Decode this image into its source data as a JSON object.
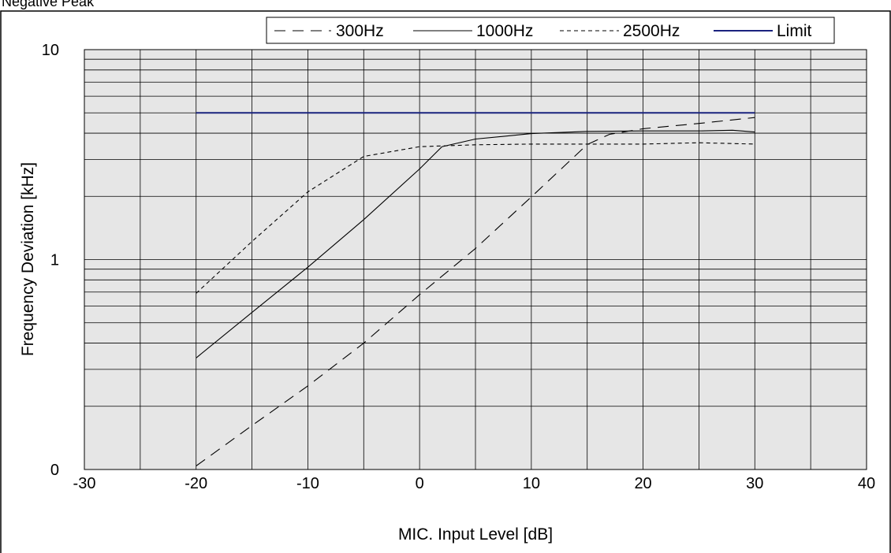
{
  "caption": "Negative Peak",
  "chart_data": {
    "type": "line",
    "xlabel": "MIC. Input Level [dB]",
    "ylabel": "Frequency Deviation [kHz]",
    "xlim": [
      -30,
      40
    ],
    "x_ticks": [
      -30,
      -20,
      -10,
      0,
      10,
      20,
      30,
      40
    ],
    "x_tick_labels": [
      "-30",
      "-20",
      "-10",
      "0",
      "10",
      "20",
      "30",
      "40"
    ],
    "y_scale": "log",
    "y_ticks": [
      0.1,
      1,
      10
    ],
    "y_tick_labels": [
      "0",
      "1",
      "10"
    ],
    "ylim": [
      0.1,
      10
    ],
    "grid": true,
    "legend_position": "top",
    "series": [
      {
        "name": "300Hz",
        "style": "long-dash",
        "color": "#000000",
        "points": [
          [
            -20,
            0.104
          ],
          [
            -15,
            0.162
          ],
          [
            -10,
            0.25
          ],
          [
            -5,
            0.4
          ],
          [
            0,
            0.68
          ],
          [
            5,
            1.13
          ],
          [
            10,
            1.99
          ],
          [
            15,
            3.53
          ],
          [
            17,
            3.95
          ],
          [
            20,
            4.2
          ],
          [
            25,
            4.45
          ],
          [
            30,
            4.75
          ]
        ]
      },
      {
        "name": "1000Hz",
        "style": "solid",
        "color": "#000000",
        "points": [
          [
            -20,
            0.34
          ],
          [
            -15,
            0.56
          ],
          [
            -10,
            0.92
          ],
          [
            -5,
            1.55
          ],
          [
            0,
            2.7
          ],
          [
            2,
            3.45
          ],
          [
            5,
            3.75
          ],
          [
            10,
            3.98
          ],
          [
            15,
            4.08
          ],
          [
            20,
            4.1
          ],
          [
            25,
            4.1
          ],
          [
            28,
            4.13
          ],
          [
            30,
            4.05
          ]
        ]
      },
      {
        "name": "2500Hz",
        "style": "short-dash",
        "color": "#000000",
        "points": [
          [
            -20,
            0.69
          ],
          [
            -15,
            1.22
          ],
          [
            -10,
            2.1
          ],
          [
            -5,
            3.1
          ],
          [
            0,
            3.45
          ],
          [
            5,
            3.52
          ],
          [
            10,
            3.55
          ],
          [
            15,
            3.55
          ],
          [
            20,
            3.55
          ],
          [
            25,
            3.6
          ],
          [
            30,
            3.55
          ]
        ]
      },
      {
        "name": "Limit",
        "style": "solid-thick",
        "color": "#1a237e",
        "points": [
          [
            -20,
            5
          ],
          [
            30,
            5
          ]
        ]
      }
    ]
  }
}
